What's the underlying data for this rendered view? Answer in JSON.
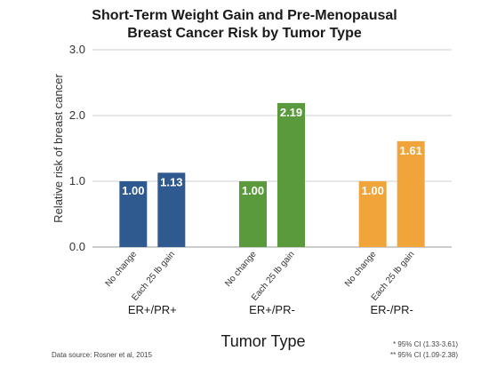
{
  "chart_data": {
    "type": "bar",
    "title_lines": [
      "Short-Term Weight Gain and Pre-Menopausal",
      "Breast Cancer Risk by Tumor Type"
    ],
    "xlabel": "Tumor Type",
    "ylabel": "Relative risk of breast cancer",
    "ylim": [
      0,
      3
    ],
    "yticks": [
      "0.0",
      "1.0",
      "2.0",
      "3.0"
    ],
    "grid": true,
    "groups": [
      {
        "name": "ER+/PR+",
        "color": "#2f5a8f",
        "bars": [
          {
            "category": "No change",
            "value": 1.0,
            "label": "1.00"
          },
          {
            "category": "Each 25 lb gain",
            "value": 1.13,
            "label": "1.13"
          }
        ]
      },
      {
        "name": "ER+/PR-",
        "color": "#5a9a3c",
        "bars": [
          {
            "category": "No change",
            "value": 1.0,
            "label": "1.00"
          },
          {
            "category": "Each 25 lb gain",
            "value": 2.19,
            "label": "2.19"
          }
        ]
      },
      {
        "name": "ER-/PR-",
        "color": "#f0a43a",
        "bars": [
          {
            "category": "No change",
            "value": 1.0,
            "label": "1.00"
          },
          {
            "category": "Each 25 lb gain",
            "value": 1.61,
            "label": "1.61"
          }
        ]
      }
    ],
    "source": "Data source: Rosner et al, 2015",
    "footnotes": [
      "* 95% CI (1.33-3.61)",
      "** 95% CI (1.09-2.38)"
    ]
  }
}
